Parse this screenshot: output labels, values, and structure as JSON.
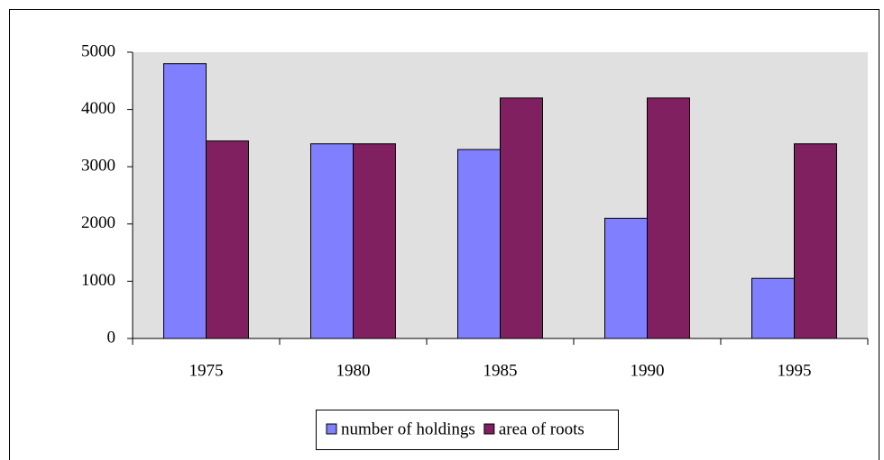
{
  "chart_data": {
    "type": "bar",
    "categories": [
      "1975",
      "1980",
      "1985",
      "1990",
      "1995"
    ],
    "series": [
      {
        "name": "number of holdings",
        "color": "#8080ff",
        "values": [
          4800,
          3400,
          3300,
          2100,
          1050
        ]
      },
      {
        "name": "area of roots",
        "color": "#802060",
        "values": [
          3450,
          3400,
          4200,
          4200,
          3400
        ]
      }
    ],
    "ylim": [
      0,
      5000
    ],
    "yticks": [
      0,
      1000,
      2000,
      3000,
      4000,
      5000
    ],
    "grid": false,
    "legend": "bottom"
  }
}
